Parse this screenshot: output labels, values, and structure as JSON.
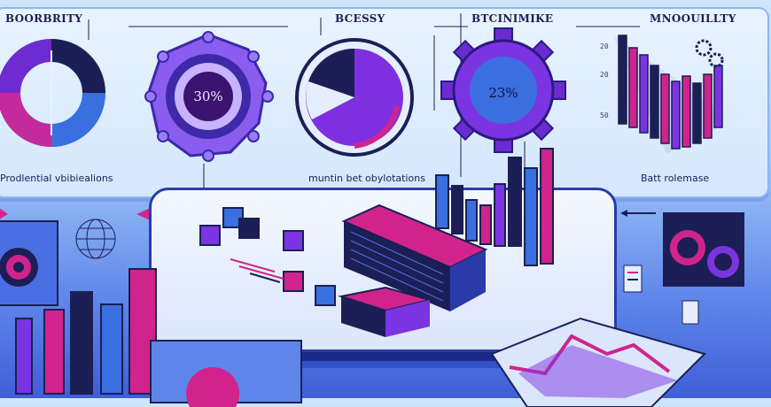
{
  "banner": {
    "headers": [
      "BOORBRITY",
      "BCESSY",
      "BTCINIMIKE",
      "MNOOUILLTY"
    ],
    "captions": [
      "Prodlential vbibiealions",
      "muntin bet obylotations",
      "Batt rolemase"
    ],
    "gauge_left_value": "30%",
    "gauge_right_value": "23%",
    "ticks": [
      "20",
      "20",
      "50"
    ]
  },
  "colors": {
    "navy": "#1b1f55",
    "purple": "#6b2fd6",
    "magenta": "#d0248c",
    "blue": "#3a78e6",
    "light_blue": "#5db2f2"
  },
  "icons": [
    "donut-chart-icon",
    "gear-gauge-icon",
    "pie-chart-icon",
    "gear-gauge-icon",
    "bar-chart-icon",
    "small-gears-icon",
    "server-rack-icon",
    "line-map-icon"
  ]
}
